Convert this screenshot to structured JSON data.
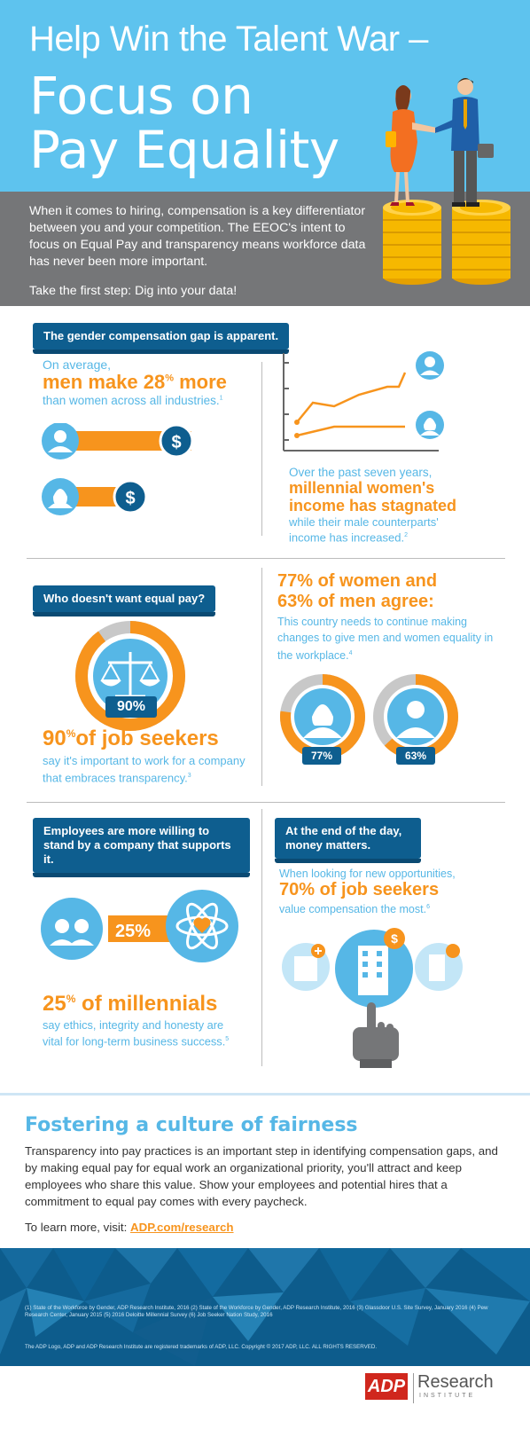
{
  "header": {
    "line1": "Help Win the Talent War –",
    "line2": "Focus on",
    "line3": "Pay Equality"
  },
  "intro": {
    "paragraph": "When it comes to hiring, compensation is a key differentiator between you and your competition. The EEOC's intent to focus on Equal Pay and transparency means workforce data has never been more important.",
    "cta": "Take the first step: Dig into your data!"
  },
  "section1": {
    "pill": "The gender compensation gap is apparent.",
    "stat_pre": "On average,",
    "stat_big": "men make 28",
    "stat_pct": "%",
    "stat_big_post": " more",
    "stat_post": "than women across all industries.",
    "stat_note": "1",
    "chart_caption_pre": "Over the past seven years,",
    "chart_caption_big": "millennial women's income has stagnated",
    "chart_caption_post": "while their male counterparts' income has increased.",
    "chart_caption_note": "2",
    "dollar": "$"
  },
  "section2": {
    "pill": "Who doesn't want equal pay?",
    "ring_label": "90%",
    "stat_big": "90",
    "stat_pct": "%",
    "stat_big_post": "of job seekers",
    "stat_post": "say it's important to work for a company that embraces transparency.",
    "stat_note": "3",
    "right_big_1": "77% of women and",
    "right_big_2": "63% of men agree:",
    "right_text": "This country needs to continue making changes to give men and women equality in the workplace.",
    "right_note": "4",
    "women_label": "77%",
    "men_label": "63%",
    "women_pct": 77,
    "men_pct": 63,
    "job_pct": 90
  },
  "section3": {
    "pill": "Employees are more willing to stand by a company that supports it.",
    "arrow_label": "25%",
    "stat_big": "25",
    "stat_pct": "%",
    "stat_big_post": " of millennials",
    "stat_post": "say ethics, integrity and honesty are vital for long-term business success.",
    "stat_note": "5",
    "right_pill": "At the end of the day, money matters.",
    "right_pre": "When looking for new opportunities,",
    "right_big": "70% of job seekers",
    "right_post": "value compensation the most.",
    "right_note": "6"
  },
  "footer": {
    "title": "Fostering a culture of fairness",
    "body": "Transparency into pay practices is an important step in identifying compensation gaps, and by making equal pay for equal work an organizational priority, you'll attract and keep employees who share this value. Show your employees and potential hires that a commitment to equal pay comes with every paycheck.",
    "learn_pre": "To learn more, visit: ",
    "learn_link": "ADP.com/research",
    "refs": "(1) State of the Workforce by Gender, ADP Research Institute, 2016 (2) State of the Workforce by Gender, ADP Research Institute, 2016 (3) Glassdoor U.S. Site Survey, January 2016 (4) Pew Research Center, January 2015 (5) 2016 Deloitte Millennial Survey (6) Job Seeker Nation Study, 2016",
    "trademark": "The ADP Logo, ADP and ADP Research Institute are registered trademarks of ADP, LLC. Copyright © 2017 ADP, LLC. ALL RIGHTS RESERVED.",
    "logo_adp": "ADP",
    "logo_research": "Research",
    "logo_institute": "INSTITUTE"
  },
  "colors": {
    "blue": "#5ec3ee",
    "navy": "#0e5e8f",
    "orange": "#f7941d",
    "gray": "#757678"
  }
}
